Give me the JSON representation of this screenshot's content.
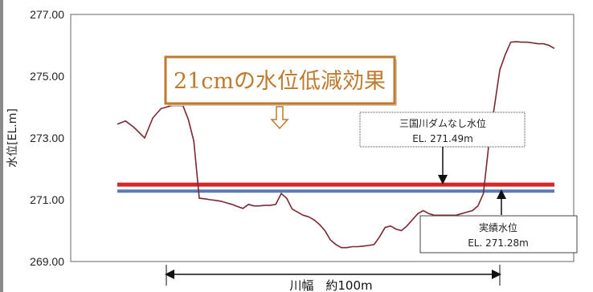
{
  "chart_data": {
    "type": "line",
    "title": "",
    "xlabel": "",
    "ylabel": "水位[EL.m]",
    "ylim": [
      269.0,
      277.0
    ],
    "yticks": [
      "277.00",
      "275.00",
      "273.00",
      "271.00",
      "269.00"
    ],
    "ytick_values": [
      277,
      275,
      273,
      271,
      269
    ],
    "grid": false,
    "series": [
      {
        "name": "",
        "color": "#7b2730",
        "x": [
          0,
          1.5,
          3,
          5,
          6.5,
          8,
          10,
          11,
          12,
          13,
          14,
          15,
          16,
          17,
          18,
          19,
          20,
          21,
          22,
          23,
          24,
          25,
          26,
          27,
          28,
          29,
          30,
          31,
          32,
          33,
          34,
          35,
          36,
          37,
          38,
          39,
          40,
          41,
          42,
          43,
          44,
          45,
          46,
          47,
          48,
          49,
          50,
          51,
          52,
          53,
          54,
          55,
          56,
          57,
          58,
          59,
          60,
          61,
          62,
          63,
          64,
          65,
          66,
          67,
          68,
          69,
          70,
          71,
          72,
          73,
          74,
          75,
          76,
          77,
          78,
          79,
          80,
          81,
          82,
          83,
          84,
          85,
          86,
          87,
          88,
          89,
          90,
          91,
          92,
          93,
          94,
          95,
          96,
          97,
          98,
          99,
          100,
          101,
          102,
          103
        ],
        "y": [
          273.45,
          273.55,
          273.35,
          273.0,
          273.65,
          273.95,
          274.05,
          274.05,
          274.05,
          273.6,
          272.9,
          271.05,
          271.03,
          271.0,
          270.98,
          270.95,
          270.9,
          270.85,
          270.78,
          270.72,
          270.85,
          270.8,
          270.8,
          270.82,
          270.82,
          270.85,
          271.2,
          271.05,
          270.7,
          270.6,
          270.5,
          270.45,
          270.35,
          270.2,
          270.0,
          269.7,
          269.55,
          269.45,
          269.45,
          269.48,
          269.48,
          269.5,
          269.52,
          269.55,
          269.8,
          270.1,
          270.15,
          270.05,
          270.0,
          270.15,
          270.35,
          270.55,
          270.65,
          270.55,
          270.5,
          270.5,
          270.5,
          270.5,
          270.5,
          270.55,
          270.6,
          270.65,
          270.8,
          271.2,
          272.8,
          274.0,
          275.2,
          275.7,
          276.1,
          276.12,
          276.1,
          276.1,
          276.08,
          276.05,
          276.05,
          276.0,
          275.9,
          275.7,
          275.5,
          275.35,
          275.28,
          275.25,
          275.25,
          275.25,
          275.25,
          275.25,
          275.25,
          275.25,
          275.25,
          275.25,
          275.25,
          275.25,
          275.25,
          275.25,
          275.25,
          275.25,
          275.25,
          275.25,
          275.25,
          275.25
        ]
      }
    ],
    "hlines": [
      {
        "y": 271.49,
        "color": "#d62728"
      },
      {
        "y": 271.28,
        "color": "#5a7ab5"
      }
    ],
    "annotations": {
      "effect": "21cmの水位低減効果",
      "no_dam_name": "三国川ダムなし水位",
      "no_dam_value": "EL. 271.49m",
      "actual_name": "実績水位",
      "actual_value": "EL. 271.28m",
      "river_width": "川幅　約100m"
    }
  }
}
